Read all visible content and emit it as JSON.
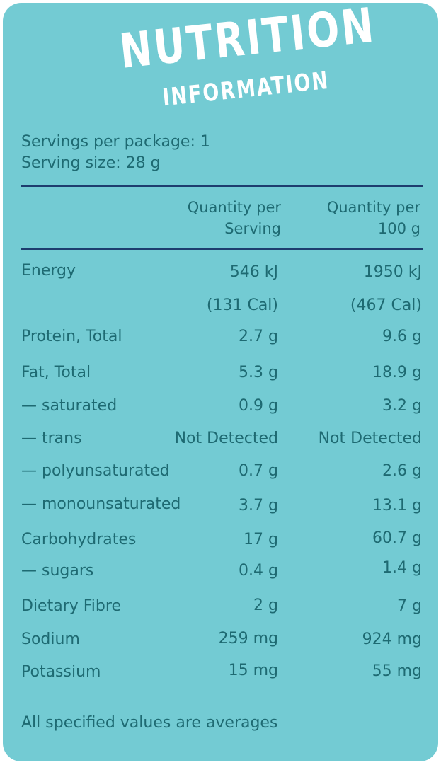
{
  "title": {
    "main": "NUTRITION",
    "sub": "INFORMATION"
  },
  "servings_per_package": "Servings per package: 1",
  "serving_size": "Serving size: 28 g",
  "headers": {
    "per_serving": [
      "Quantity per",
      "Serving"
    ],
    "per_100g": [
      "Quantity per",
      "100 g"
    ]
  },
  "rows": [
    {
      "label": "Energy",
      "serving": "546 kJ",
      "per100": "1950 kJ"
    },
    {
      "label": "",
      "serving": "(131 Cal)",
      "per100": "(467 Cal)"
    },
    {
      "label": "Protein, Total",
      "serving": "2.7 g",
      "per100": "9.6 g"
    },
    {
      "label": "Fat, Total",
      "serving": "5.3 g",
      "per100": "18.9 g"
    },
    {
      "label": "— saturated",
      "serving": "0.9 g",
      "per100": "3.2 g"
    },
    {
      "label": "— trans",
      "serving": "Not Detected",
      "per100": "Not Detected"
    },
    {
      "label": "— polyunsaturated",
      "serving": "0.7 g",
      "per100": "2.6 g"
    },
    {
      "label": "— monounsaturated",
      "serving": "3.7 g",
      "per100": "13.1 g"
    },
    {
      "label": "Carbohydrates",
      "serving": "17 g",
      "per100": "60.7 g"
    },
    {
      "label": "— sugars",
      "serving": "0.4 g",
      "per100": "1.4 g"
    },
    {
      "label": "Dietary Fibre",
      "serving": "2 g",
      "per100": "7 g"
    },
    {
      "label": "Sodium",
      "serving": "259 mg",
      "per100": "924 mg"
    },
    {
      "label": "Potassium",
      "serving": "15 mg",
      "per100": "55 mg"
    }
  ],
  "footer": "All specified values are averages",
  "colors": {
    "panel": "#73cbd3",
    "text": "#1e6a72",
    "rule": "#1d3d6e",
    "title": "#ffffff"
  }
}
